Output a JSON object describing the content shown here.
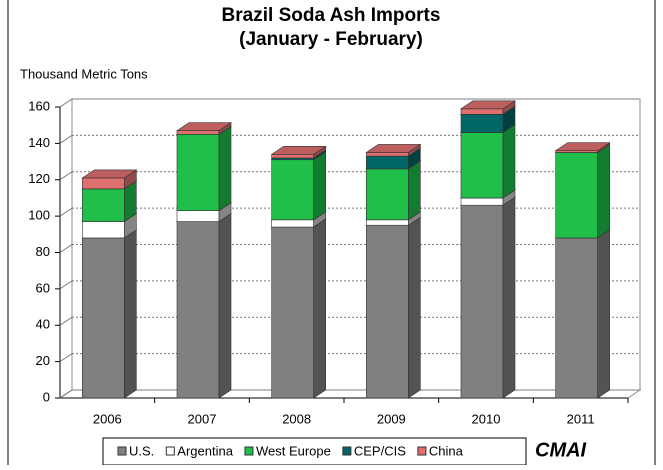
{
  "chart_data": {
    "type": "bar3d_stacked",
    "title": "Brazil Soda Ash Imports",
    "subtitle": "(January - February)",
    "y_label": "Thousand Metric Tons",
    "logo": "CMAI",
    "categories": [
      "2006",
      "2007",
      "2008",
      "2009",
      "2010",
      "2011"
    ],
    "series": [
      {
        "name": "U.S.",
        "color": "#808080",
        "values": [
          88,
          97,
          94,
          95,
          106,
          88
        ]
      },
      {
        "name": "Argentina",
        "color": "#ffffff",
        "values": [
          9,
          6,
          4,
          3,
          4,
          0
        ]
      },
      {
        "name": "West Europe",
        "color": "#1fbf4a",
        "values": [
          18,
          42,
          33,
          28,
          36,
          47
        ]
      },
      {
        "name": "CEP/CIS",
        "color": "#006666",
        "values": [
          0,
          0,
          1,
          7,
          10,
          0
        ]
      },
      {
        "name": "China",
        "color": "#e07070",
        "values": [
          6,
          2,
          2,
          2,
          3,
          1
        ]
      }
    ],
    "ylim": [
      0,
      160
    ],
    "yticks": [
      0,
      20,
      40,
      60,
      80,
      100,
      120,
      140,
      160
    ],
    "grid": true
  }
}
